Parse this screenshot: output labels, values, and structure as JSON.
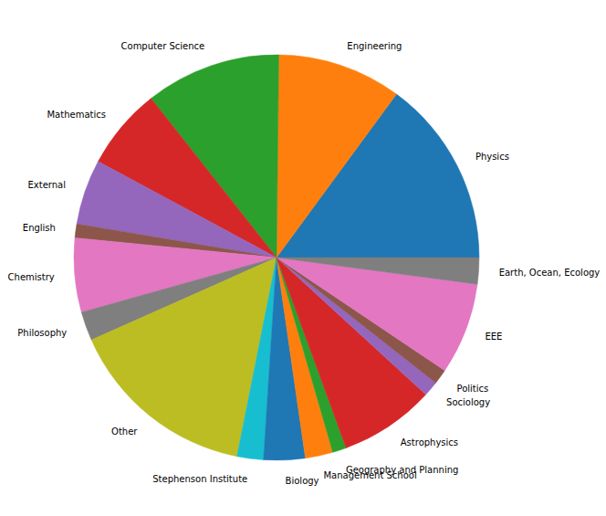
{
  "chart_data": {
    "type": "pie",
    "categories": [
      "Physics",
      "Engineering",
      "Computer Science",
      "Mathematics",
      "External",
      "English",
      "Chemistry",
      "Philosophy",
      "Other",
      "Stephenson Institute",
      "Biology",
      "Management School",
      "Geography and Planning",
      "Astrophysics",
      "Sociology",
      "Politics",
      "EEE",
      "Earth, Ocean, Ecology"
    ],
    "values": [
      14.9,
      9.9,
      10.8,
      6.5,
      5.2,
      1.1,
      5.9,
      2.3,
      15.2,
      2.1,
      3.3,
      2.2,
      1.1,
      7.6,
      1.2,
      1.2,
      7.3,
      2.1
    ],
    "colors": [
      "#1f77b4",
      "#ff7f0e",
      "#2ca02c",
      "#d62728",
      "#9467bd",
      "#8c564b",
      "#e377c2",
      "#7f7f7f",
      "#bcbd22",
      "#17becf",
      "#1f77b4",
      "#ff7f0e",
      "#2ca02c",
      "#d62728",
      "#9467bd",
      "#8c564b",
      "#e377c2",
      "#7f7f7f"
    ]
  }
}
